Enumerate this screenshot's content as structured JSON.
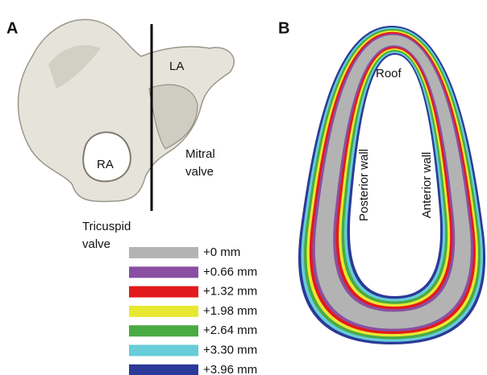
{
  "panel_a": {
    "label": "A",
    "annotations": {
      "la": "LA",
      "ra": "RA",
      "mitral": [
        "Mitral",
        "valve"
      ],
      "tricuspid": [
        "Tricuspid",
        "valve"
      ]
    }
  },
  "panel_b": {
    "label": "B",
    "annotations": {
      "roof": "Roof",
      "posterior": "Posterior wall",
      "anterior": "Anterior wall"
    }
  },
  "legend": [
    {
      "label": "+0 mm",
      "color": "#b3b3b3"
    },
    {
      "label": "+0.66 mm",
      "color": "#8a4fa3"
    },
    {
      "label": "+1.32 mm",
      "color": "#e31a1c"
    },
    {
      "label": "+1.98 mm",
      "color": "#e8e832"
    },
    {
      "label": "+2.64 mm",
      "color": "#4aaa44"
    },
    {
      "label": "+3.30 mm",
      "color": "#66cdd9"
    },
    {
      "label": "+3.96 mm",
      "color": "#2b3a98"
    }
  ]
}
